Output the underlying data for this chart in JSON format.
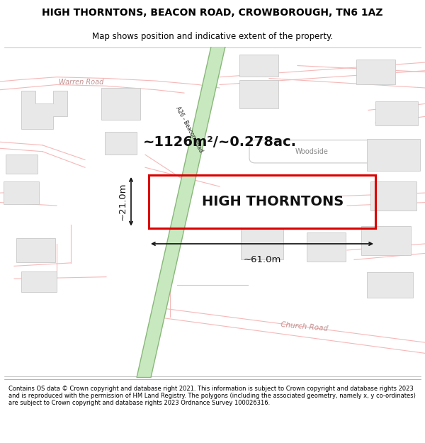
{
  "title_line1": "HIGH THORNTONS, BEACON ROAD, CROWBOROUGH, TN6 1AZ",
  "title_line2": "Map shows position and indicative extent of the property.",
  "map_bg": "#ffffff",
  "road_line_color": "#f5b8b8",
  "road_line_lw": 0.8,
  "building_fill": "#e8e8e8",
  "building_edge": "#c8c8c8",
  "building_lw": 0.6,
  "green_road_fill": "#c8e8c0",
  "green_road_edge": "#88b878",
  "green_road_lw": 1.0,
  "property_stroke": "#dd0000",
  "property_lw": 2.2,
  "dim_color": "#111111",
  "area_text": "~1126m²/~0.278ac.",
  "property_label": "HIGH THORNTONS",
  "dim_width": "~61.0m",
  "dim_height": "~21.0m",
  "label_road_color": "#c09090",
  "label_warren": "Warren Road",
  "label_beacon": "A26 - Beacon Road",
  "label_woodside": "Woodside",
  "label_church": "Church Road",
  "footer_text": "Contains OS data © Crown copyright and database right 2021. This information is subject to Crown copyright and database rights 2023 and is reproduced with the permission of HM Land Registry. The polygons (including the associated geometry, namely x, y co-ordinates) are subject to Crown copyright and database rights 2023 Ordnance Survey 100026316."
}
